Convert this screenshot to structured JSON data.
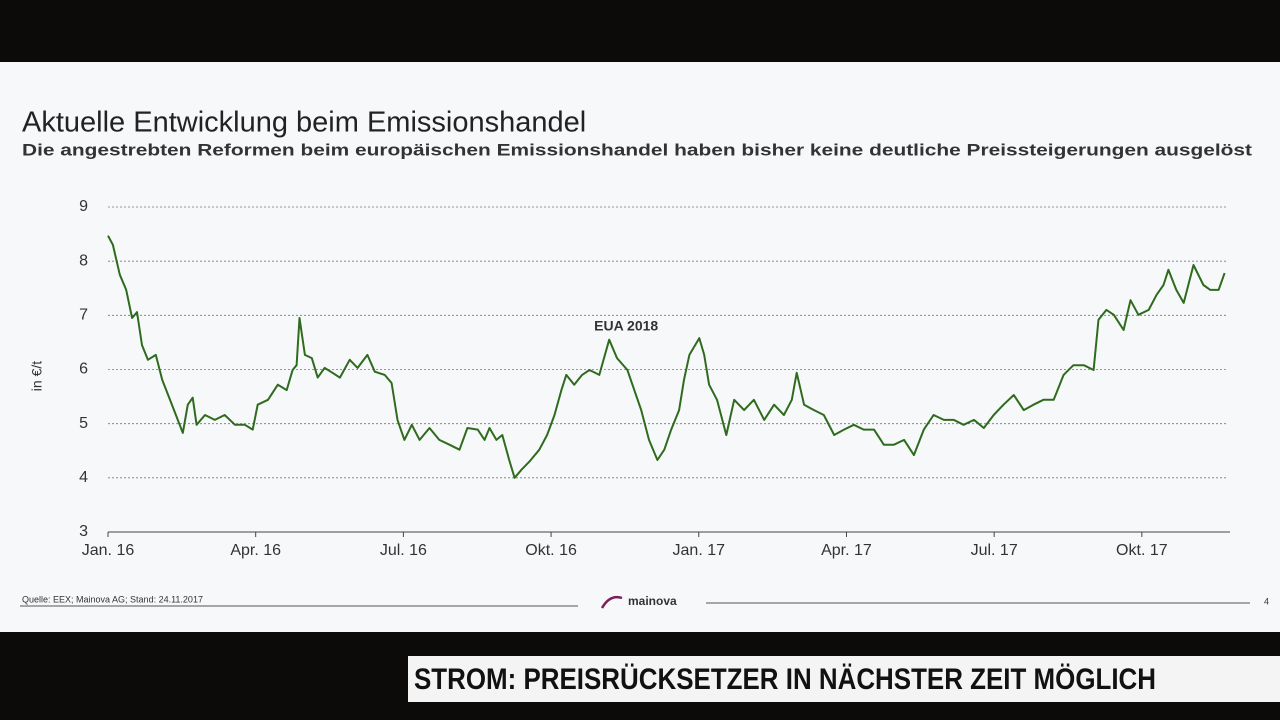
{
  "chart_data": {
    "type": "line",
    "title": "Aktuelle Entwicklung beim Emissionshandel",
    "subtitle": "Die angestrebten Reformen beim europäischen Emissionshandel haben bisher keine deutliche Preissteigerungen ausgelöst",
    "y_label": "in €/t",
    "x": [
      0,
      0.1,
      0.24,
      0.37,
      0.49,
      0.59,
      0.69,
      0.81,
      0.97,
      1.1,
      1.26,
      1.38,
      1.52,
      1.62,
      1.72,
      1.8,
      1.97,
      2.17,
      2.37,
      2.58,
      2.78,
      2.94,
      3.04,
      3.25,
      3.45,
      3.63,
      3.75,
      3.83,
      3.89,
      4.0,
      4.14,
      4.26,
      4.4,
      4.56,
      4.71,
      4.91,
      5.07,
      5.27,
      5.42,
      5.62,
      5.76,
      5.88,
      6.02,
      6.17,
      6.33,
      6.53,
      6.73,
      6.94,
      7.14,
      7.3,
      7.51,
      7.65,
      7.75,
      7.89,
      8.01,
      8.15,
      8.26,
      8.4,
      8.56,
      8.76,
      8.92,
      9.07,
      9.21,
      9.31,
      9.47,
      9.63,
      9.78,
      9.98,
      10.18,
      10.34,
      10.55,
      10.69,
      10.83,
      10.99,
      11.16,
      11.3,
      11.44,
      11.6,
      11.7,
      11.81,
      12.01,
      12.11,
      12.21,
      12.37,
      12.56,
      12.72,
      12.92,
      13.12,
      13.33,
      13.53,
      13.73,
      13.89,
      13.99,
      14.14,
      14.34,
      14.54,
      14.75,
      14.95,
      15.15,
      15.35,
      15.56,
      15.76,
      15.96,
      16.17,
      16.37,
      16.57,
      16.77,
      16.98,
      17.18,
      17.38,
      17.59,
      17.79,
      17.99,
      18.19,
      18.4,
      18.6,
      18.8,
      19.0,
      19.21,
      19.41,
      19.61,
      19.82,
      20.02,
      20.12,
      20.28,
      20.43,
      20.63,
      20.77,
      20.93,
      21.14,
      21.3,
      21.44,
      21.54,
      21.7,
      21.85,
      22.05,
      22.25,
      22.39,
      22.56,
      22.68
    ],
    "series": [
      {
        "name": "EUA 2018",
        "color": "#2f6b1e",
        "values": [
          8.47,
          8.3,
          7.75,
          7.47,
          6.95,
          7.06,
          6.45,
          6.18,
          6.27,
          5.81,
          5.44,
          5.16,
          4.83,
          5.35,
          5.48,
          4.98,
          5.16,
          5.07,
          5.16,
          4.98,
          4.98,
          4.89,
          5.35,
          5.44,
          5.72,
          5.62,
          5.99,
          6.08,
          6.95,
          6.27,
          6.21,
          5.85,
          6.03,
          5.94,
          5.85,
          6.18,
          6.03,
          6.27,
          5.96,
          5.9,
          5.75,
          5.07,
          4.7,
          4.98,
          4.7,
          4.92,
          4.7,
          4.61,
          4.52,
          4.92,
          4.89,
          4.7,
          4.92,
          4.7,
          4.79,
          4.33,
          4.0,
          4.15,
          4.3,
          4.52,
          4.79,
          5.16,
          5.62,
          5.9,
          5.72,
          5.9,
          5.99,
          5.9,
          6.55,
          6.21,
          5.99,
          5.62,
          5.25,
          4.7,
          4.33,
          4.52,
          4.89,
          5.25,
          5.81,
          6.27,
          6.58,
          6.27,
          5.72,
          5.44,
          4.79,
          5.44,
          5.25,
          5.44,
          5.07,
          5.35,
          5.16,
          5.44,
          5.94,
          5.35,
          5.25,
          5.16,
          4.79,
          4.89,
          4.98,
          4.89,
          4.89,
          4.61,
          4.61,
          4.7,
          4.42,
          4.89,
          5.16,
          5.07,
          5.07,
          4.98,
          5.07,
          4.92,
          5.16,
          5.35,
          5.53,
          5.25,
          5.35,
          5.44,
          5.44,
          5.9,
          6.08,
          6.08,
          5.99,
          6.92,
          7.1,
          7.01,
          6.73,
          7.28,
          7.01,
          7.1,
          7.38,
          7.56,
          7.84,
          7.47,
          7.23,
          7.93,
          7.56,
          7.47,
          7.47,
          7.78
        ]
      }
    ],
    "xlim": [
      0,
      22.75
    ],
    "ylim": [
      3,
      9
    ],
    "xticks": [
      {
        "value": 0,
        "label": "Jan. 16"
      },
      {
        "value": 3,
        "label": "Apr. 16"
      },
      {
        "value": 6,
        "label": "Jul. 16"
      },
      {
        "value": 9,
        "label": "Okt. 16"
      },
      {
        "value": 12,
        "label": "Jan. 17"
      },
      {
        "value": 15,
        "label": "Apr. 17"
      },
      {
        "value": 18,
        "label": "Jul. 17"
      },
      {
        "value": 21,
        "label": "Okt. 17"
      }
    ],
    "yticks": [
      3,
      4,
      5,
      6,
      7,
      8,
      9
    ],
    "grid": true
  },
  "footer": {
    "source": "Quelle: EEX; Mainova AG; Stand: 24.11.2017",
    "logo": "mainova",
    "page": "4"
  },
  "ticker": "STROM: PREISRÜCKSETZER IN NÄCHSTER ZEIT MÖGLICH"
}
